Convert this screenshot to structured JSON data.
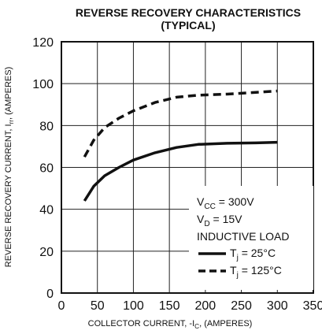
{
  "chart_data": {
    "type": "line",
    "title_line1": "REVERSE RECOVERY CHARACTERISTICS",
    "title_line2": "(TYPICAL)",
    "xlabel": {
      "pre": "COLLECTOR CURRENT, -I",
      "sub": "C",
      "post": ", (AMPERES)"
    },
    "ylabel": {
      "pre": "REVERSE RECOVERY CURRENT, I",
      "sub": "rr",
      "post": ", (AMPERES)"
    },
    "xlim": [
      0,
      350
    ],
    "ylim": [
      0,
      120
    ],
    "x_ticks": [
      0,
      50,
      100,
      150,
      200,
      250,
      300,
      350
    ],
    "y_ticks": [
      0,
      20,
      40,
      60,
      80,
      100,
      120
    ],
    "grid": true,
    "conditions": [
      {
        "pre": "V",
        "sub": "CC",
        "post": " = 300V"
      },
      {
        "pre": "V",
        "sub": "D",
        "post": " = 15V"
      },
      {
        "pre": "INDUCTIVE LOAD",
        "sub": "",
        "post": ""
      }
    ],
    "series": [
      {
        "name": "T_j = 25°C",
        "legend": {
          "pre": "T",
          "sub": "j",
          "post": " = 25°C"
        },
        "style": "solid",
        "x": [
          32,
          45,
          60,
          80,
          100,
          130,
          160,
          190,
          230,
          270,
          300
        ],
        "values": [
          44,
          51,
          56,
          60,
          63.5,
          67,
          69.5,
          71,
          71.5,
          71.7,
          72
        ]
      },
      {
        "name": "T_j = 125°C",
        "legend": {
          "pre": "T",
          "sub": "j",
          "post": " = 125°C"
        },
        "style": "dashed",
        "x": [
          32,
          45,
          60,
          80,
          100,
          130,
          160,
          190,
          230,
          270,
          300
        ],
        "values": [
          65,
          73,
          79,
          83.5,
          87,
          91,
          93.5,
          94.5,
          95,
          95.8,
          96.5
        ]
      }
    ]
  }
}
